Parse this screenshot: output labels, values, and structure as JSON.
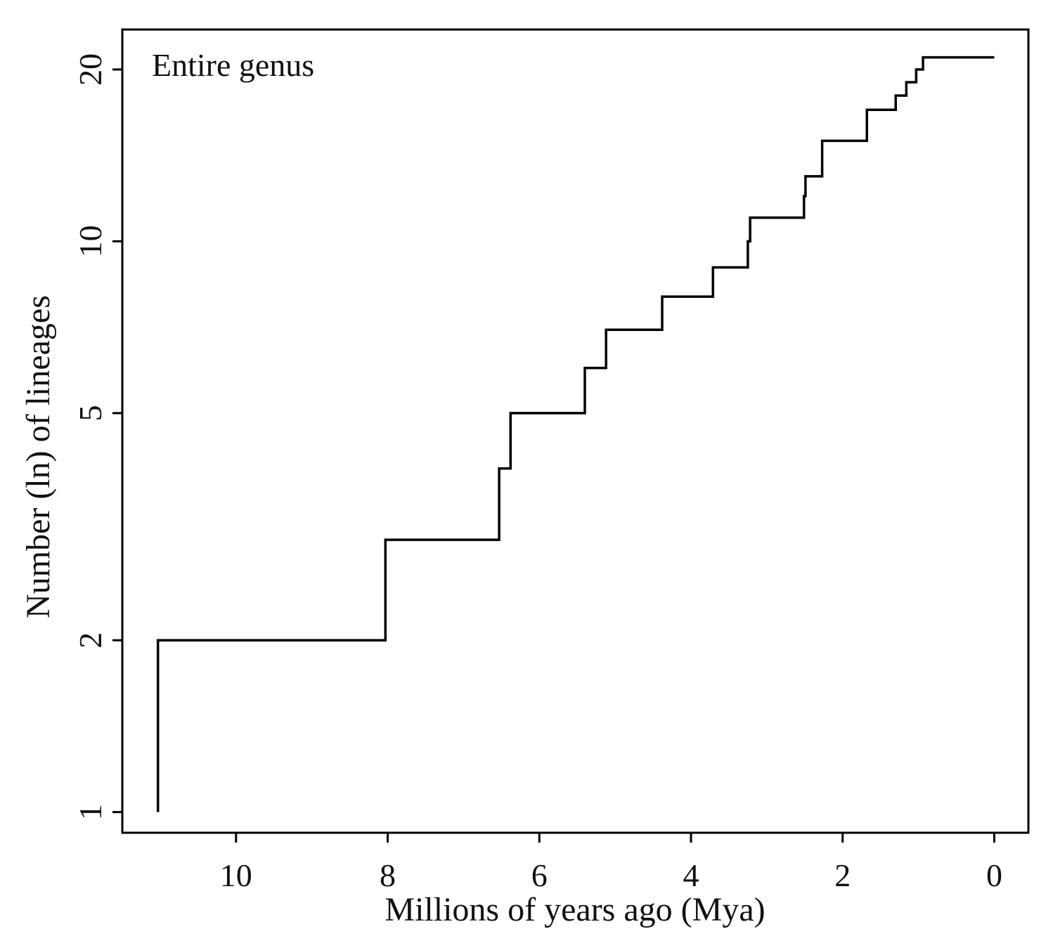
{
  "chart_data": {
    "type": "line",
    "subtype": "lineage-through-time step plot",
    "annotation": "Entire genus",
    "xlabel": "Millions of years ago (Mya)",
    "ylabel": "Number (ln) of lineages",
    "xlim": [
      11.5,
      -0.45
    ],
    "ylim": [
      0.92,
      23.5
    ],
    "yscale": "log",
    "x_ticks": [
      10,
      8,
      6,
      4,
      2,
      0
    ],
    "x_tick_labels": [
      "10",
      "8",
      "6",
      "4",
      "2",
      "0"
    ],
    "y_ticks": [
      1,
      2,
      5,
      10,
      20
    ],
    "y_tick_labels": [
      "1",
      "2",
      "5",
      "10",
      "20"
    ],
    "grid": false,
    "line_color": "#000000",
    "series": [
      {
        "name": "Entire genus",
        "step": true,
        "x": [
          11.03,
          8.03,
          6.53,
          6.38,
          5.4,
          5.12,
          4.38,
          3.71,
          3.25,
          3.22,
          2.51,
          2.49,
          2.27,
          1.68,
          1.3,
          1.16,
          1.03,
          0.94,
          0.0
        ],
        "y": [
          2,
          3,
          4,
          5,
          6,
          7,
          8,
          9,
          10,
          11,
          12,
          13,
          15,
          17,
          18,
          19,
          20,
          21,
          21
        ],
        "start": {
          "x": 11.03,
          "y": 1
        }
      }
    ]
  }
}
